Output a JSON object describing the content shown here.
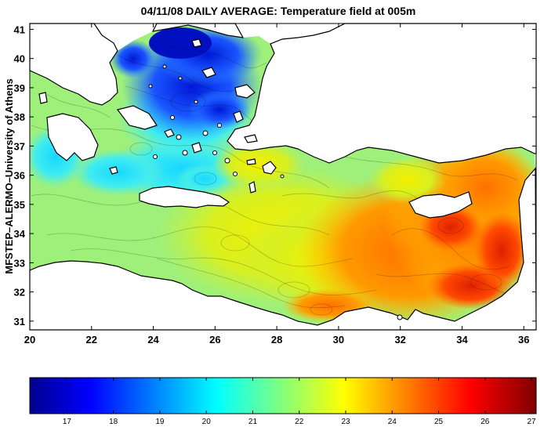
{
  "title": "04/11/08 DAILY AVERAGE: Temperature field at 005m",
  "side_label": "MFSTEP–ALERMO–University of Athens",
  "map": {
    "x_ticks": [
      "20",
      "22",
      "24",
      "26",
      "28",
      "30",
      "32",
      "34",
      "36"
    ],
    "y_ticks": [
      "31",
      "32",
      "33",
      "34",
      "35",
      "36",
      "37",
      "38",
      "39",
      "40",
      "41"
    ],
    "lon_range": [
      20,
      36.4
    ],
    "lat_range": [
      30.7,
      41.2
    ],
    "land_color": "#ffffff",
    "coast_color": "#000000"
  },
  "colorbar": {
    "ticks": [
      "17",
      "18",
      "19",
      "20",
      "21",
      "22",
      "23",
      "24",
      "25",
      "26",
      "27"
    ],
    "range": [
      16.2,
      27.1
    ],
    "colors": [
      "#00008f",
      "#0000ff",
      "#00ffff",
      "#ffff00",
      "#ff0000",
      "#800000"
    ]
  }
}
